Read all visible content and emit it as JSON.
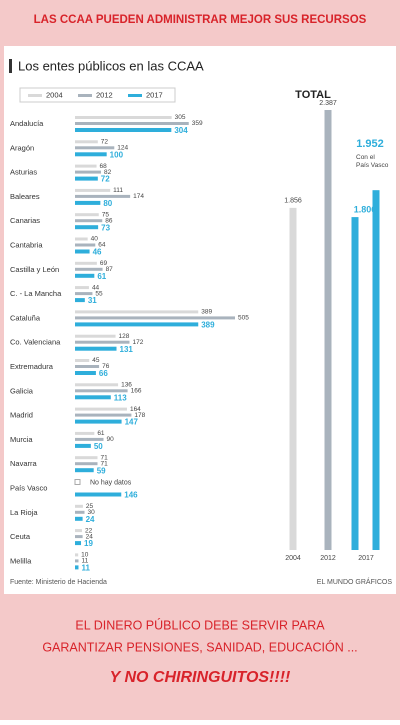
{
  "header": {
    "title": "LAS CCAA PUEDEN ADMINISTRAR MEJOR SUS RECURSOS"
  },
  "chart_data": [
    {
      "type": "hbar-group",
      "title": "Los entes públicos en las CCAA",
      "categories": [
        "Andalucía",
        "Aragón",
        "Asturias",
        "Baleares",
        "Canarias",
        "Cantabria",
        "Castilla y León",
        "C. - La Mancha",
        "Cataluña",
        "Co. Valenciana",
        "Extremadura",
        "Galicia",
        "Madrid",
        "Murcia",
        "Navarra",
        "País Vasco",
        "La Rioja",
        "Ceuta",
        "Melilla"
      ],
      "series": [
        {
          "name": "2004",
          "color": "#d9d9d9",
          "values": [
            305,
            72,
            68,
            111,
            75,
            40,
            69,
            44,
            389,
            128,
            45,
            136,
            164,
            61,
            71,
            null,
            25,
            22,
            10
          ]
        },
        {
          "name": "2012",
          "color": "#a9b3bd",
          "values": [
            359,
            124,
            82,
            174,
            86,
            64,
            87,
            55,
            505,
            172,
            76,
            166,
            178,
            90,
            71,
            null,
            30,
            24,
            11
          ]
        },
        {
          "name": "2017",
          "color": "#2eaedb",
          "values": [
            304,
            100,
            72,
            80,
            73,
            46,
            61,
            31,
            389,
            131,
            66,
            113,
            147,
            50,
            59,
            146,
            24,
            19,
            11
          ]
        }
      ],
      "missing_note": "No hay datos",
      "source": "Fuente: Ministerio de Hacienda"
    },
    {
      "type": "vbar",
      "title": "TOTAL",
      "categories": [
        "2004",
        "2012",
        "2017",
        null
      ],
      "values": [
        1856,
        2387,
        1806,
        1952
      ],
      "value_labels": [
        "1.856",
        "2.387",
        "1.806",
        "1.952"
      ],
      "colors": [
        "#d9d9d9",
        "#a9b3bd",
        "#2eaedb",
        "#2eaedb"
      ],
      "annotation": [
        "Con el",
        "País Vasco"
      ],
      "credit": "EL MUNDO GRÁFICOS"
    }
  ],
  "footer": {
    "lines": [
      "EL DINERO PÚBLICO DEBE SERVIR PARA",
      "GARANTIZAR PENSIONES, SANIDAD, EDUCACIÓN ..."
    ],
    "slogan": "Y NO CHIRINGUITOS!!!!"
  }
}
